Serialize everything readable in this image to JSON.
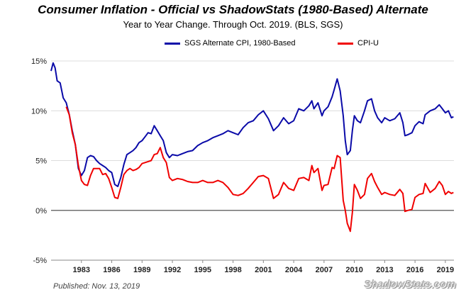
{
  "chart_data": {
    "type": "line",
    "title": "Consumer Inflation - Official vs ShadowStats (1980-Based) Alternate",
    "subtitle": "Year to Year Change. Through Oct. 2019.   (BLS, SGS)",
    "ylim": [
      -5,
      15
    ],
    "xlim": [
      1980,
      2019.85
    ],
    "yticks": [
      -5,
      0,
      5,
      10,
      15
    ],
    "ytick_labels": [
      "-5%",
      "0%",
      "5%",
      "10%",
      "15%"
    ],
    "xticks": [
      1983,
      1986,
      1989,
      1992,
      1995,
      1998,
      2001,
      2004,
      2007,
      2010,
      2013,
      2016,
      2019
    ],
    "xtick_labels": [
      "1983",
      "1986",
      "1989",
      "1992",
      "1995",
      "1998",
      "2001",
      "2004",
      "2007",
      "2010",
      "2013",
      "2016",
      "2019"
    ],
    "grid": "horizontal",
    "legend_position": "top",
    "series": [
      {
        "name": "SGS Alternate CPI, 1980-Based",
        "color": "#0a0aa8",
        "x": [
          1980.0,
          1980.2,
          1980.4,
          1980.6,
          1980.9,
          1981.2,
          1981.5,
          1981.8,
          1982.1,
          1982.4,
          1982.7,
          1983.0,
          1983.3,
          1983.6,
          1983.9,
          1984.2,
          1984.5,
          1984.8,
          1985.1,
          1985.4,
          1985.7,
          1986.0,
          1986.3,
          1986.6,
          1986.9,
          1987.2,
          1987.5,
          1987.8,
          1988.1,
          1988.4,
          1988.7,
          1989.0,
          1989.3,
          1989.6,
          1989.9,
          1990.2,
          1990.5,
          1990.8,
          1991.1,
          1991.4,
          1991.7,
          1992.0,
          1992.5,
          1993.0,
          1993.5,
          1994.0,
          1994.5,
          1995.0,
          1995.5,
          1996.0,
          1996.5,
          1997.0,
          1997.5,
          1998.0,
          1998.5,
          1999.0,
          1999.5,
          2000.0,
          2000.5,
          2001.0,
          2001.5,
          2002.0,
          2002.5,
          2003.0,
          2003.5,
          2004.0,
          2004.5,
          2005.0,
          2005.5,
          2005.8,
          2006.0,
          2006.4,
          2006.8,
          2007.0,
          2007.4,
          2007.8,
          2008.0,
          2008.3,
          2008.6,
          2008.9,
          2009.1,
          2009.3,
          2009.6,
          2009.8,
          2010.0,
          2010.3,
          2010.6,
          2011.0,
          2011.3,
          2011.7,
          2012.0,
          2012.3,
          2012.7,
          2013.0,
          2013.5,
          2014.0,
          2014.5,
          2014.8,
          2015.0,
          2015.3,
          2015.7,
          2016.0,
          2016.4,
          2016.8,
          2017.0,
          2017.5,
          2018.0,
          2018.4,
          2018.7,
          2019.0,
          2019.3,
          2019.6,
          2019.8
        ],
        "values": [
          14.0,
          14.8,
          14.3,
          13.0,
          12.8,
          11.3,
          10.8,
          9.6,
          8.0,
          6.6,
          4.2,
          3.5,
          4.0,
          5.3,
          5.5,
          5.4,
          5.0,
          4.7,
          4.5,
          4.3,
          4.0,
          3.8,
          2.6,
          2.4,
          3.3,
          4.6,
          5.6,
          5.8,
          6.0,
          6.3,
          6.8,
          7.0,
          7.4,
          7.8,
          7.7,
          8.5,
          8.0,
          7.5,
          7.0,
          5.8,
          5.3,
          5.6,
          5.5,
          5.7,
          5.9,
          6.0,
          6.5,
          6.8,
          7.0,
          7.3,
          7.5,
          7.7,
          8.0,
          7.8,
          7.6,
          8.3,
          8.8,
          9.0,
          9.6,
          10.0,
          9.2,
          8.0,
          8.5,
          9.3,
          8.7,
          9.0,
          10.2,
          10.0,
          10.5,
          11.0,
          10.2,
          10.8,
          9.5,
          10.0,
          10.4,
          11.4,
          12.1,
          13.2,
          12.0,
          9.5,
          7.0,
          5.6,
          6.0,
          8.0,
          9.5,
          9.0,
          8.8,
          10.0,
          11.0,
          11.2,
          10.0,
          9.3,
          8.8,
          9.3,
          9.0,
          9.2,
          9.8,
          8.8,
          7.5,
          7.6,
          7.8,
          8.5,
          8.9,
          8.7,
          9.6,
          10.0,
          10.2,
          10.6,
          10.2,
          9.8,
          10.0,
          9.3,
          9.4
        ]
      },
      {
        "name": "CPI-U",
        "color": "#f00000",
        "x": [
          1981.5,
          1981.8,
          1982.1,
          1982.4,
          1982.7,
          1983.0,
          1983.3,
          1983.6,
          1983.9,
          1984.2,
          1984.5,
          1984.8,
          1985.1,
          1985.4,
          1985.7,
          1986.0,
          1986.3,
          1986.6,
          1986.9,
          1987.2,
          1987.5,
          1987.8,
          1988.1,
          1988.4,
          1988.7,
          1989.0,
          1989.3,
          1989.6,
          1989.9,
          1990.2,
          1990.5,
          1990.8,
          1991.1,
          1991.4,
          1991.7,
          1992.0,
          1992.5,
          1993.0,
          1993.5,
          1994.0,
          1994.5,
          1995.0,
          1995.5,
          1996.0,
          1996.5,
          1997.0,
          1997.5,
          1998.0,
          1998.5,
          1999.0,
          1999.5,
          2000.0,
          2000.5,
          2001.0,
          2001.5,
          2002.0,
          2002.5,
          2003.0,
          2003.5,
          2004.0,
          2004.5,
          2005.0,
          2005.5,
          2005.8,
          2006.0,
          2006.4,
          2006.8,
          2007.0,
          2007.4,
          2007.8,
          2008.0,
          2008.3,
          2008.6,
          2008.9,
          2009.1,
          2009.3,
          2009.6,
          2009.8,
          2010.0,
          2010.3,
          2010.6,
          2011.0,
          2011.3,
          2011.7,
          2012.0,
          2012.3,
          2012.7,
          2013.0,
          2013.5,
          2014.0,
          2014.5,
          2014.8,
          2015.0,
          2015.3,
          2015.7,
          2016.0,
          2016.4,
          2016.8,
          2017.0,
          2017.5,
          2018.0,
          2018.4,
          2018.7,
          2019.0,
          2019.3,
          2019.6,
          2019.8
        ],
        "values": [
          10.4,
          9.6,
          7.8,
          6.6,
          4.5,
          3.0,
          2.6,
          2.5,
          3.5,
          4.2,
          4.2,
          4.2,
          3.6,
          3.7,
          3.2,
          2.3,
          1.3,
          1.2,
          2.3,
          3.6,
          4.0,
          4.2,
          4.0,
          4.1,
          4.3,
          4.7,
          4.8,
          4.9,
          5.0,
          5.6,
          5.7,
          6.3,
          5.3,
          4.8,
          3.3,
          3.0,
          3.2,
          3.1,
          2.9,
          2.8,
          2.8,
          3.0,
          2.8,
          2.8,
          3.0,
          2.8,
          2.3,
          1.6,
          1.5,
          1.7,
          2.2,
          2.8,
          3.4,
          3.5,
          3.2,
          1.2,
          1.6,
          2.8,
          2.2,
          2.0,
          3.2,
          3.3,
          3.0,
          4.5,
          3.8,
          4.2,
          2.0,
          2.5,
          2.6,
          4.3,
          4.2,
          5.5,
          5.3,
          1.0,
          0.0,
          -1.3,
          -2.1,
          -0.2,
          2.6,
          2.0,
          1.2,
          1.6,
          3.2,
          3.7,
          2.9,
          2.3,
          1.6,
          1.8,
          1.6,
          1.5,
          2.1,
          1.7,
          -0.1,
          0.0,
          0.1,
          1.3,
          1.6,
          1.7,
          2.7,
          1.8,
          2.2,
          2.9,
          2.5,
          1.6,
          1.9,
          1.7,
          1.8
        ]
      }
    ]
  },
  "footer": {
    "published": "Published: Nov. 13, 2019",
    "source": "ShadowStats.com"
  }
}
